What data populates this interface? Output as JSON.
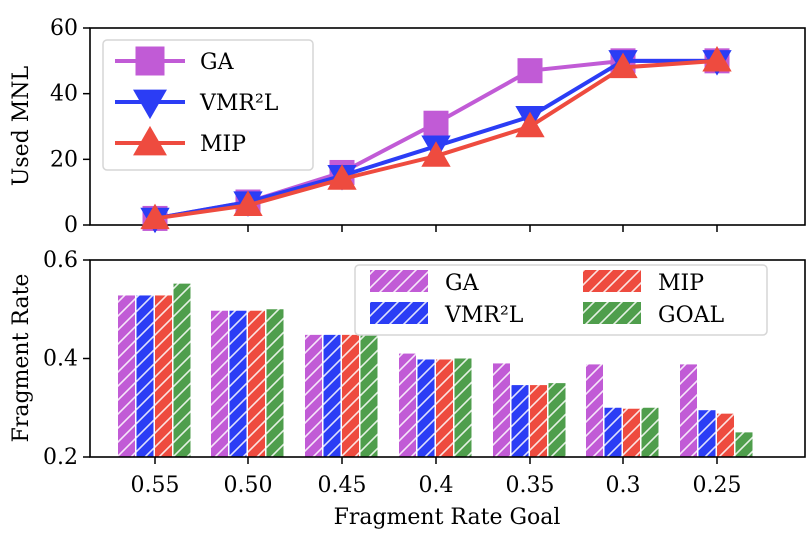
{
  "colors": {
    "GA": "#c15bd6",
    "VMR2L": "#2b3df5",
    "MIP": "#ee4b3f",
    "GOAL": "#4f9e4c"
  },
  "chart_data": [
    {
      "type": "line",
      "x": [
        "0.55",
        "0.50",
        "0.45",
        "0.4",
        "0.35",
        "0.3",
        "0.25"
      ],
      "ylabel": "Used MNL",
      "xlabel": "",
      "ylim": [
        0,
        60
      ],
      "yticks": [
        "0",
        "20",
        "40",
        "60"
      ],
      "legend_position": "upper-left",
      "series": [
        {
          "name": "GA",
          "key": "GA",
          "marker": "square",
          "values": [
            2,
            7,
            16,
            31,
            47,
            50,
            50
          ]
        },
        {
          "name": "VMR²L",
          "key": "VMR2L",
          "marker": "triangle-down",
          "values": [
            2,
            7,
            15,
            24,
            33,
            50,
            50
          ]
        },
        {
          "name": "MIP",
          "key": "MIP",
          "marker": "triangle-up",
          "values": [
            2,
            6,
            14,
            21,
            30,
            48,
            50
          ]
        }
      ]
    },
    {
      "type": "bar",
      "categories": [
        "0.55",
        "0.50",
        "0.45",
        "0.4",
        "0.35",
        "0.3",
        "0.25"
      ],
      "xlabel": "Fragment Rate Goal",
      "ylabel": "Fragment Rate",
      "ylim": [
        0.2,
        0.6
      ],
      "yticks": [
        "0.2",
        "0.4",
        "0.6"
      ],
      "legend_position": "upper-right",
      "series": [
        {
          "name": "GA",
          "key": "GA",
          "values": [
            0.528,
            0.497,
            0.448,
            0.41,
            0.39,
            0.388,
            0.388
          ]
        },
        {
          "name": "VMR²L",
          "key": "VMR2L",
          "values": [
            0.528,
            0.497,
            0.448,
            0.398,
            0.346,
            0.3,
            0.295
          ]
        },
        {
          "name": "MIP",
          "key": "MIP",
          "values": [
            0.528,
            0.497,
            0.448,
            0.398,
            0.346,
            0.298,
            0.288
          ]
        },
        {
          "name": "GOAL",
          "key": "GOAL",
          "values": [
            0.552,
            0.5,
            0.45,
            0.4,
            0.35,
            0.3,
            0.25
          ]
        }
      ]
    }
  ]
}
